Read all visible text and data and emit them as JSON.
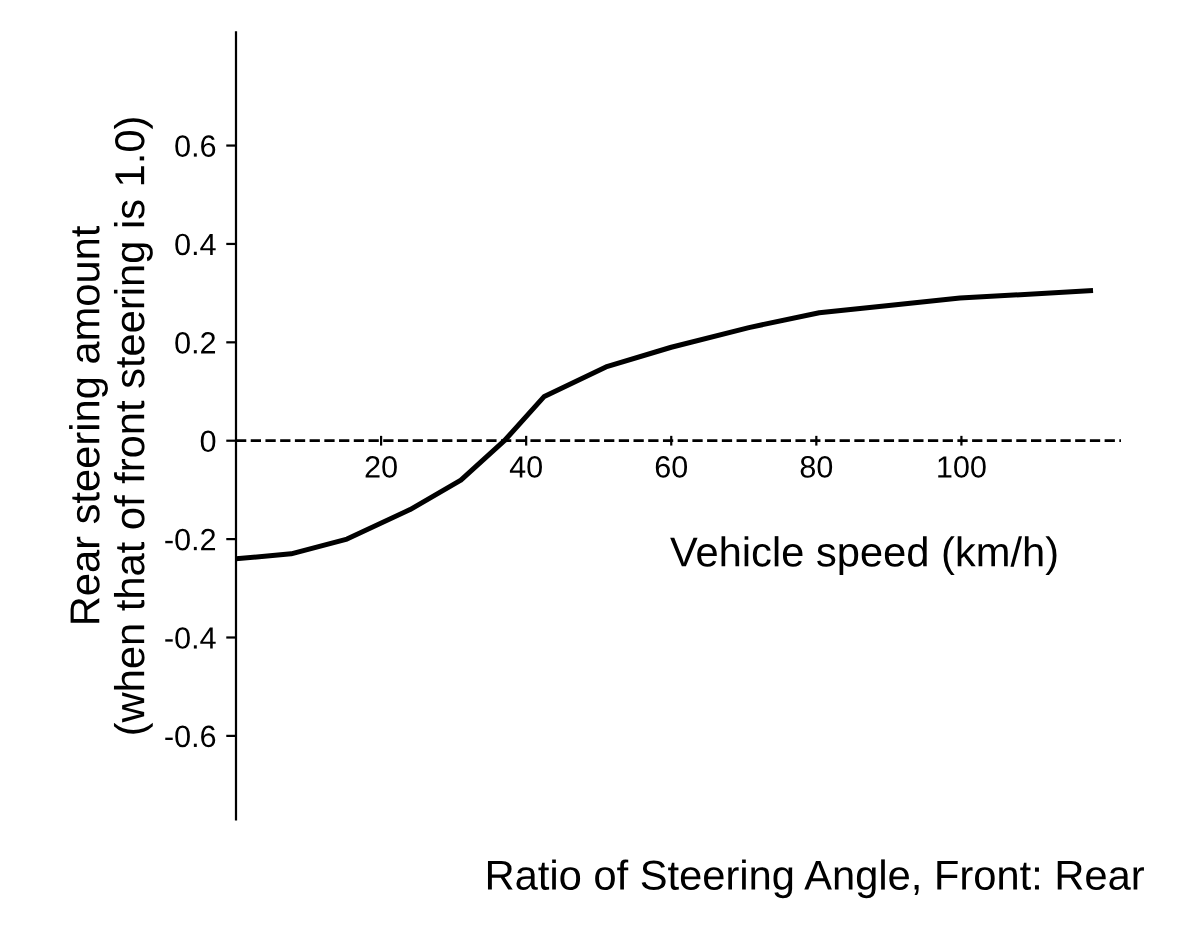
{
  "chart_data": {
    "type": "line",
    "xlabel": "Vehicle speed (km/h)",
    "ylabel": "Rear steering amount\n(when that of front steering is 1.0)",
    "annotations": [
      "Ratio of Steering Angle, Front: Rear"
    ],
    "series": [
      {
        "color": "#000000",
        "x": [
          0,
          7.6,
          15.3,
          24,
          31,
          37,
          42.5,
          51,
          60,
          70.7,
          80.4,
          90,
          99.8,
          117.8
        ],
        "values": [
          -0.24,
          -0.23,
          -0.2,
          -0.14,
          -0.08,
          0.0,
          0.09,
          0.15,
          0.19,
          0.23,
          0.26,
          0.275,
          0.29,
          0.305
        ]
      }
    ],
    "xlim": [
      0,
      122
    ],
    "xticks": [
      20,
      40,
      60,
      80,
      100
    ],
    "ylim": [
      -0.77,
      0.83
    ],
    "yticks": [
      0.6,
      0.4,
      0.2,
      0,
      -0.2,
      -0.4,
      -0.6
    ],
    "ref_lines": [
      {
        "axis": "y",
        "value": 0,
        "color": "#000000",
        "line_style": "dashed"
      }
    ],
    "grid": false,
    "legend": false,
    "marker": "none",
    "line_style": "solid"
  }
}
